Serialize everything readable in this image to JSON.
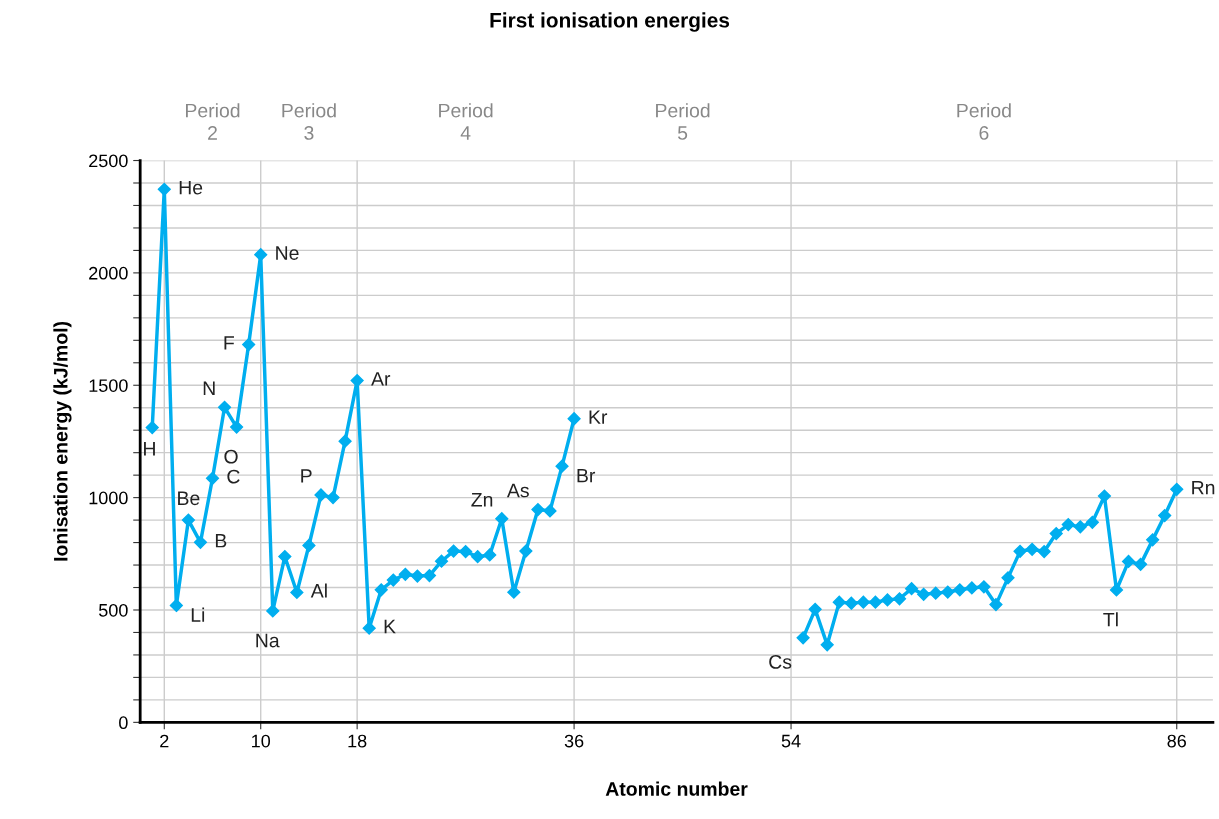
{
  "chart_data": {
    "type": "line",
    "title": "First ionisation energies",
    "xlabel": "Atomic number",
    "ylabel": "Ionisation energy (kJ/mol)",
    "x": [
      1,
      2,
      3,
      4,
      5,
      6,
      7,
      8,
      9,
      10,
      11,
      12,
      13,
      14,
      15,
      16,
      17,
      18,
      19,
      20,
      21,
      22,
      23,
      24,
      25,
      26,
      27,
      28,
      29,
      30,
      31,
      32,
      33,
      34,
      35,
      36,
      37,
      38,
      39,
      40,
      41,
      42,
      43,
      44,
      45,
      46,
      47,
      48,
      49,
      50,
      51,
      52,
      53,
      54,
      55,
      56,
      57,
      58,
      59,
      60,
      61,
      62,
      63,
      64,
      65,
      66,
      67,
      68,
      69,
      70,
      71,
      72,
      73,
      74,
      75,
      76,
      77,
      78,
      79,
      80,
      81,
      82,
      83,
      84,
      85,
      86
    ],
    "series": [
      {
        "color": "#00aeef",
        "values": [
          1312,
          2372,
          520,
          900,
          801,
          1086,
          1402,
          1314,
          1681,
          2081,
          496,
          738,
          578,
          787,
          1012,
          1000,
          1251,
          1521,
          419,
          590,
          633,
          659,
          651,
          653,
          717,
          762,
          760,
          737,
          745,
          906,
          579,
          762,
          947,
          941,
          1140,
          1351,
          null,
          null,
          null,
          null,
          null,
          null,
          null,
          null,
          null,
          null,
          null,
          null,
          null,
          null,
          null,
          null,
          null,
          null,
          376,
          503,
          345,
          535,
          530,
          535,
          535,
          545,
          550,
          595,
          570,
          575,
          580,
          590,
          598,
          603,
          524,
          643,
          761,
          770,
          760,
          840,
          880,
          870,
          890,
          1007,
          589,
          716,
          703,
          812,
          920,
          1037
        ]
      }
    ],
    "marker": "diamond",
    "line_style": "solid",
    "grid": true,
    "xlim": [
      0,
      89
    ],
    "xticks": [
      2,
      10,
      18,
      36,
      54,
      86
    ],
    "ylim": [
      0,
      2500
    ],
    "yticks": [
      0,
      {
        "value": 100,
        "label": null
      },
      {
        "value": 200,
        "label": null
      },
      {
        "value": 300,
        "label": null
      },
      {
        "value": 400,
        "label": null
      },
      500,
      {
        "value": 600,
        "label": null
      },
      {
        "value": 700,
        "label": null
      },
      {
        "value": 800,
        "label": null
      },
      {
        "value": 900,
        "label": null
      },
      1000,
      {
        "value": 1100,
        "label": null
      },
      {
        "value": 1200,
        "label": null
      },
      {
        "value": 1300,
        "label": null
      },
      {
        "value": 1400,
        "label": null
      },
      1500,
      {
        "value": 1600,
        "label": null
      },
      {
        "value": 1700,
        "label": null
      },
      {
        "value": 1800,
        "label": null
      },
      {
        "value": 1900,
        "label": null
      },
      2000,
      {
        "value": 2100,
        "label": null
      },
      {
        "value": 2200,
        "label": null
      },
      {
        "value": 2300,
        "label": null
      },
      {
        "value": 2400,
        "label": null
      },
      2500
    ],
    "annotations": [
      "Period\n2",
      "Period\n3",
      "Period\n4",
      "Period\n5",
      "Period\n6",
      {
        "text": "H",
        "x": 1,
        "y": 1312
      },
      {
        "text": "He",
        "x": 2,
        "y": 2372
      },
      {
        "text": "Li",
        "x": 3,
        "y": 520
      },
      {
        "text": "Be",
        "x": 4,
        "y": 900
      },
      {
        "text": "B",
        "x": 5,
        "y": 801
      },
      {
        "text": "C",
        "x": 6,
        "y": 1086
      },
      {
        "text": "N",
        "x": 7,
        "y": 1402
      },
      {
        "text": "O",
        "x": 8,
        "y": 1314
      },
      {
        "text": "F",
        "x": 9,
        "y": 1681
      },
      {
        "text": "Ne",
        "x": 10,
        "y": 2081
      },
      {
        "text": "Na",
        "x": 11,
        "y": 496
      },
      {
        "text": "Al",
        "x": 13,
        "y": 578
      },
      {
        "text": "P",
        "x": 15,
        "y": 1012
      },
      {
        "text": "Ar",
        "x": 18,
        "y": 1521
      },
      {
        "text": "K",
        "x": 19,
        "y": 419
      },
      {
        "text": "Zn",
        "x": 30,
        "y": 906
      },
      {
        "text": "As",
        "x": 33,
        "y": 947
      },
      {
        "text": "Br",
        "x": 35,
        "y": 1140
      },
      {
        "text": "Kr",
        "x": 36,
        "y": 1351
      },
      {
        "text": "Cs",
        "x": 55,
        "y": 376
      },
      {
        "text": "Tl",
        "x": 81,
        "y": 589
      },
      {
        "text": "Rn",
        "x": 86,
        "y": 1037
      }
    ]
  }
}
